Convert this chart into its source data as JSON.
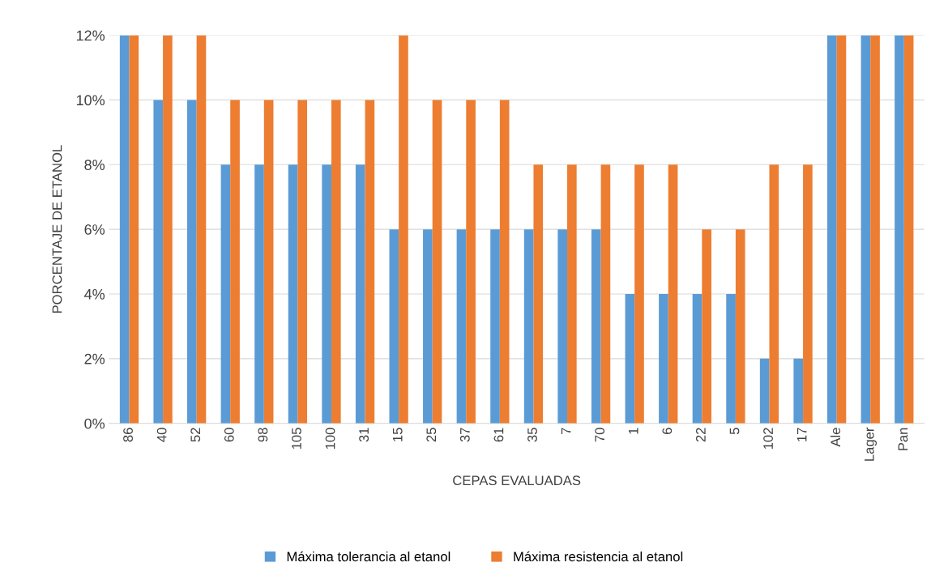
{
  "chart_data": {
    "type": "bar",
    "xlabel": "CEPAS EVALUADAS",
    "ylabel": "PORCENTAJE DE ETANOL",
    "categories": [
      "86",
      "40",
      "52",
      "60",
      "98",
      "105",
      "100",
      "31",
      "15",
      "25",
      "37",
      "61",
      "35",
      "7",
      "70",
      "1",
      "6",
      "22",
      "5",
      "102",
      "17",
      "Ale",
      "Lager",
      "Pan"
    ],
    "series": [
      {
        "name": "Máxima tolerancia al etanol",
        "color": "#5b9bd5",
        "values": [
          12,
          10,
          10,
          8,
          8,
          8,
          8,
          8,
          6,
          6,
          6,
          6,
          6,
          6,
          6,
          4,
          4,
          4,
          4,
          2,
          2,
          12,
          12,
          12
        ]
      },
      {
        "name": "Máxima resistencia al etanol",
        "color": "#ed7d31",
        "values": [
          12,
          12,
          12,
          10,
          10,
          10,
          10,
          10,
          12,
          10,
          10,
          10,
          8,
          8,
          8,
          8,
          8,
          6,
          6,
          8,
          8,
          12,
          12,
          12
        ]
      }
    ],
    "ylim": [
      0,
      12
    ],
    "yticks": [
      {
        "value": 0,
        "label": "0%"
      },
      {
        "value": 2,
        "label": "2%"
      },
      {
        "value": 4,
        "label": "4%"
      },
      {
        "value": 6,
        "label": "6%"
      },
      {
        "value": 8,
        "label": "8%"
      },
      {
        "value": 10,
        "label": "10%"
      },
      {
        "value": 12,
        "label": "12%"
      }
    ],
    "grid": "y",
    "legend": "bottom"
  }
}
